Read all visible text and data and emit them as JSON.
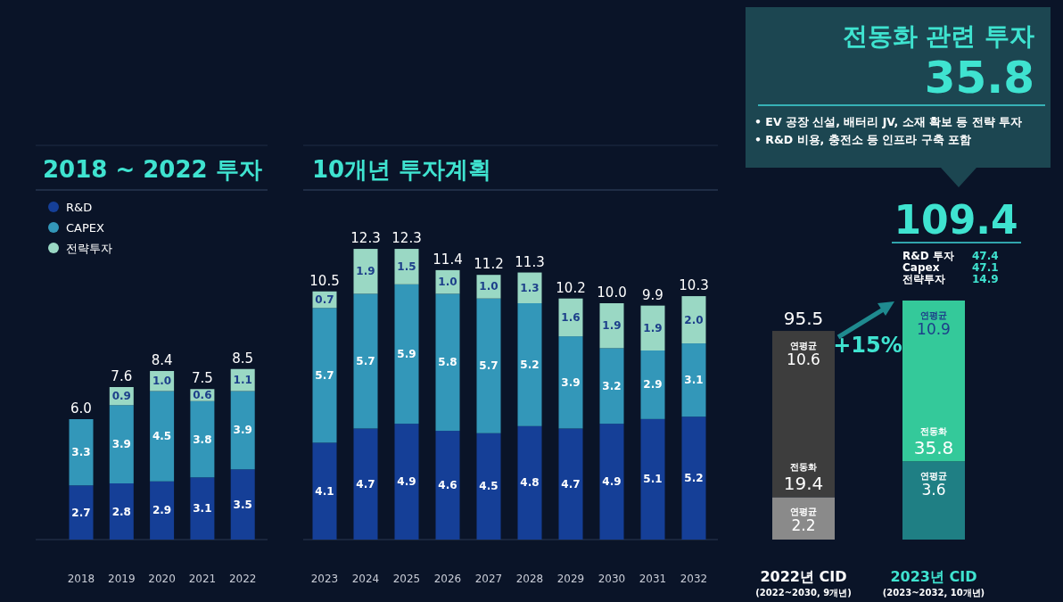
{
  "chart_data": [
    {
      "type": "bar",
      "title": "2018 ~ 2022 투자",
      "stacked": true,
      "data_labels": true,
      "legend": "top left",
      "categories": [
        "2018",
        "2019",
        "2020",
        "2021",
        "2022"
      ],
      "series": [
        {
          "name": "R&D",
          "color": "#153f97",
          "values": [
            2.7,
            2.8,
            2.9,
            3.1,
            3.5
          ]
        },
        {
          "name": "CAPEX",
          "color": "#3397b9",
          "values": [
            3.3,
            3.9,
            4.5,
            3.8,
            3.9
          ]
        },
        {
          "name": "전략투자",
          "color": "#9ad8c4",
          "values": [
            null,
            0.9,
            1.0,
            0.6,
            1.1
          ],
          "value_labels": [
            null,
            "0.9",
            "1.0",
            "0.6",
            "1.1"
          ]
        }
      ],
      "totals": [
        "6.0",
        "7.6",
        "8.4",
        "7.5",
        "8.5"
      ]
    },
    {
      "type": "bar",
      "title": "10개년 투자계획",
      "stacked": true,
      "data_labels": true,
      "categories": [
        "2023",
        "2024",
        "2025",
        "2026",
        "2027",
        "2028",
        "2029",
        "2030",
        "2031",
        "2032"
      ],
      "series": [
        {
          "color": "#153f97",
          "values": [
            4.1,
            4.7,
            4.9,
            4.6,
            4.5,
            4.8,
            4.7,
            4.9,
            5.1,
            5.2
          ]
        },
        {
          "color": "#3397b9",
          "values": [
            5.7,
            5.7,
            5.9,
            5.8,
            5.7,
            5.2,
            3.9,
            3.2,
            2.9,
            3.1
          ]
        },
        {
          "color": "#9ad8c4",
          "values": [
            0.7,
            1.9,
            1.5,
            1.0,
            1.0,
            1.3,
            1.6,
            1.9,
            1.9,
            2.0
          ],
          "value_labels": [
            "0.7",
            "1.9",
            "1.5",
            "1.0",
            "1.0",
            "1.3",
            "1.6",
            "1.9",
            "1.9",
            "2.0"
          ]
        }
      ],
      "totals": [
        "10.5",
        "12.3",
        "12.3",
        "11.4",
        "11.2",
        "11.3",
        "10.2",
        "10.0",
        "9.9",
        "10.3"
      ]
    },
    {
      "type": "bar",
      "stacked": true,
      "categories": [
        "2022년 CID",
        "2023년 CID"
      ],
      "series": [
        {
          "colors": [
            "#8a8a8a",
            "#1f7f84"
          ],
          "values": [
            19.4,
            35.8
          ],
          "value_labels": [
            "전동화 19.4",
            "전동화 35.8"
          ]
        },
        {
          "colors": [
            "#3d3d3d",
            "#34c99a"
          ],
          "values": [
            76.1,
            73.6
          ]
        }
      ],
      "totals": [
        "95.5",
        "109.4"
      ],
      "annotations": [
        {
          "text": "연평균 10.6",
          "x": "2022년 CID",
          "y": 95.5
        },
        {
          "text": "연평균 10.9",
          "x": "2023년 CID",
          "y": 109.4
        },
        {
          "text": "연평균 2.2",
          "x": "2022년 CID",
          "y": 19.4
        },
        {
          "text": "연평균 3.6",
          "x": "2023년 CID",
          "y": 35.8
        },
        "+15%",
        "(2022~2030, 9개년)",
        "(2023~2032, 10개년)",
        "전동화 관련 투자",
        "35.8",
        "• EV 공장 신설, 배터리 JV, 소재 확보 등 전략 투자",
        "• R&D 비용, 충전소 등 인프라 구축 포함",
        "R&D 투자 47.4",
        "Capex 47.1",
        "전략투자 14.9"
      ]
    }
  ]
}
